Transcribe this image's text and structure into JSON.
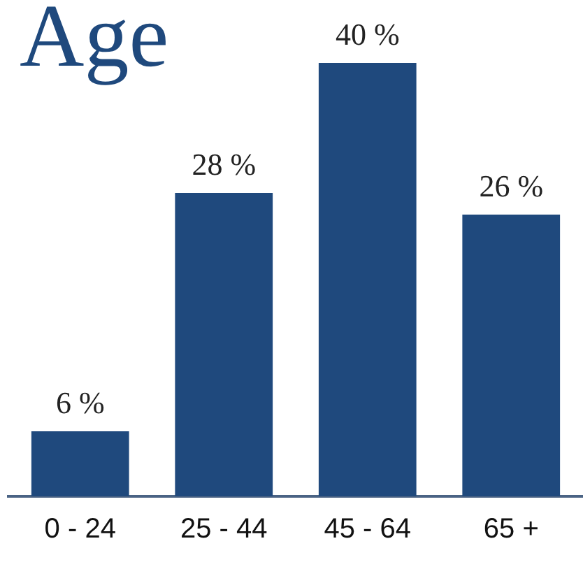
{
  "chart_data": {
    "type": "bar",
    "title": "Age",
    "categories": [
      "0 - 24",
      "25 - 44",
      "45 - 64",
      "65 +"
    ],
    "values": [
      6,
      28,
      40,
      26
    ],
    "value_labels": [
      "6 %",
      "28 %",
      "40 %",
      "26 %"
    ],
    "color": "#1f497d",
    "grid": false,
    "legend": false
  }
}
